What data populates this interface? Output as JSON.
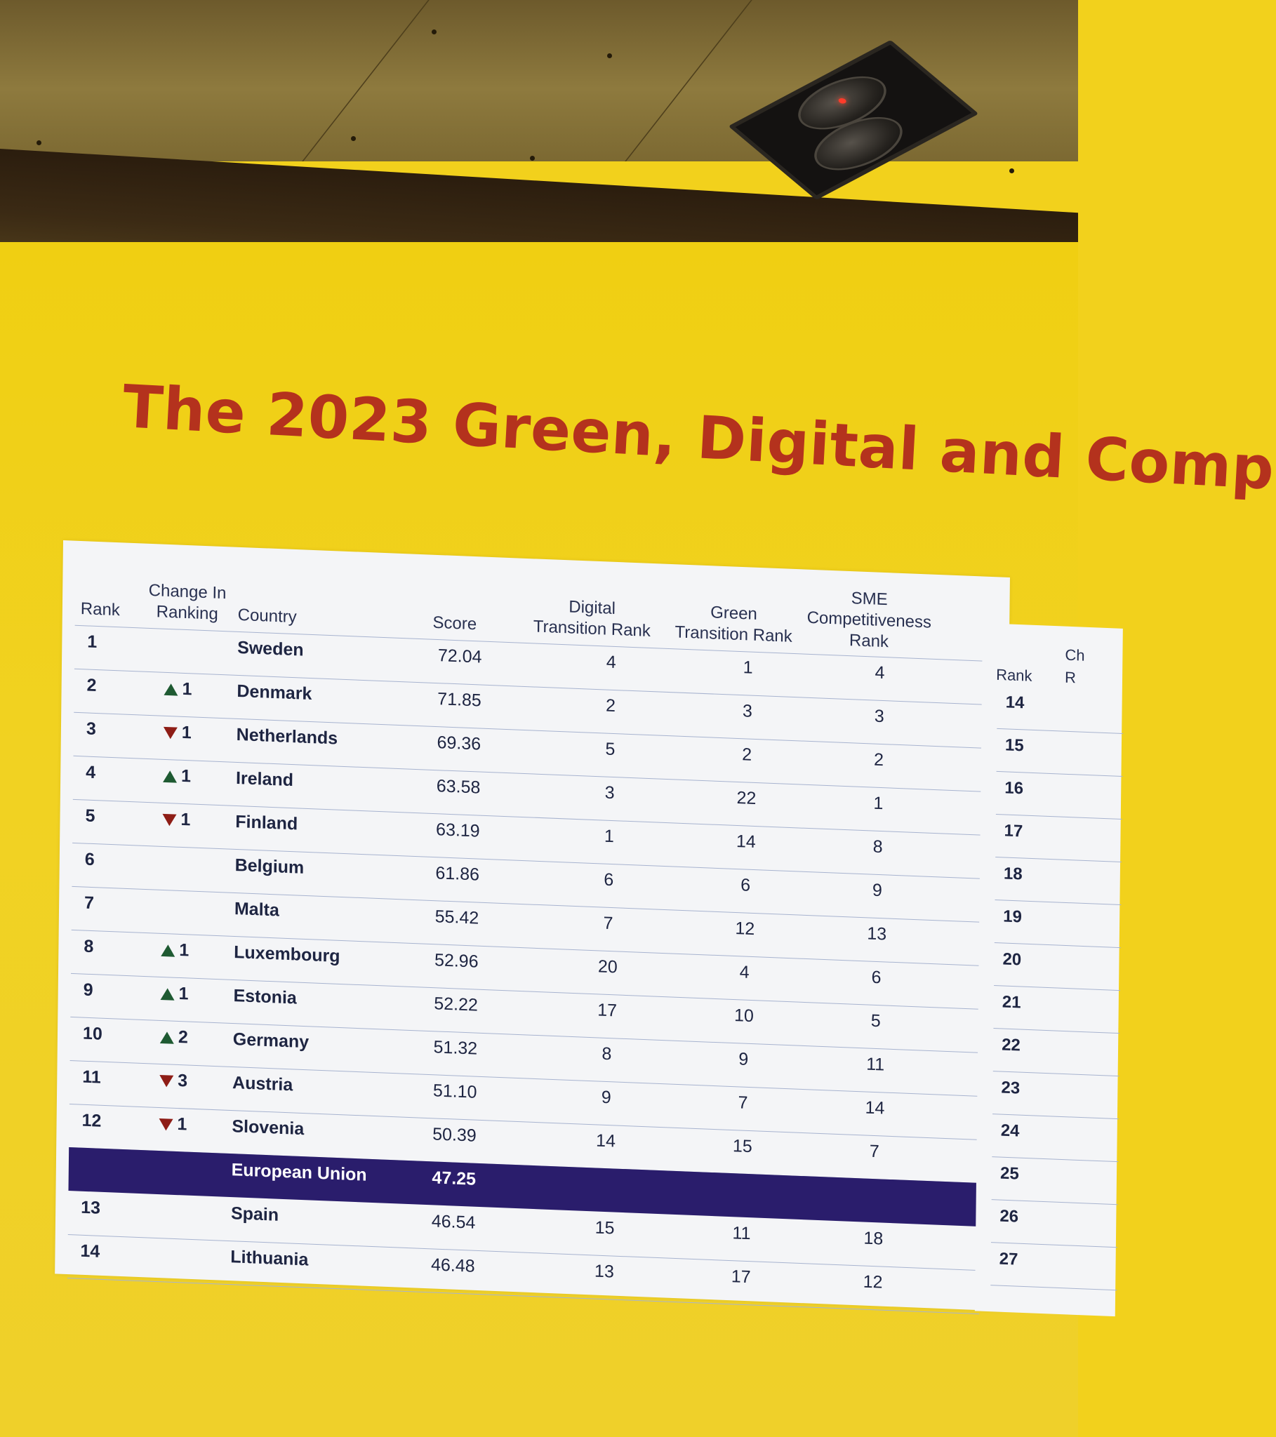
{
  "title": "The 2023 Green, Digital and Comp",
  "table": {
    "headers": {
      "rank": "Rank",
      "change_line1": "Change In",
      "change_line2": "Ranking",
      "country": "Country",
      "score": "Score",
      "digital_line1": "Digital",
      "digital_line2": "Transition Rank",
      "green_line1": "Green",
      "green_line2": "Transition Rank",
      "sme_line1": "SME",
      "sme_line2": "Competitiveness",
      "sme_line3": "Rank"
    },
    "rows": [
      {
        "rank": "1",
        "dir": "",
        "change": "",
        "country": "Sweden",
        "score": "72.04",
        "digital": "4",
        "green": "1",
        "sme": "4"
      },
      {
        "rank": "2",
        "dir": "up",
        "change": "1",
        "country": "Denmark",
        "score": "71.85",
        "digital": "2",
        "green": "3",
        "sme": "3"
      },
      {
        "rank": "3",
        "dir": "down",
        "change": "1",
        "country": "Netherlands",
        "score": "69.36",
        "digital": "5",
        "green": "2",
        "sme": "2"
      },
      {
        "rank": "4",
        "dir": "up",
        "change": "1",
        "country": "Ireland",
        "score": "63.58",
        "digital": "3",
        "green": "22",
        "sme": "1"
      },
      {
        "rank": "5",
        "dir": "down",
        "change": "1",
        "country": "Finland",
        "score": "63.19",
        "digital": "1",
        "green": "14",
        "sme": "8"
      },
      {
        "rank": "6",
        "dir": "",
        "change": "",
        "country": "Belgium",
        "score": "61.86",
        "digital": "6",
        "green": "6",
        "sme": "9"
      },
      {
        "rank": "7",
        "dir": "",
        "change": "",
        "country": "Malta",
        "score": "55.42",
        "digital": "7",
        "green": "12",
        "sme": "13"
      },
      {
        "rank": "8",
        "dir": "up",
        "change": "1",
        "country": "Luxembourg",
        "score": "52.96",
        "digital": "20",
        "green": "4",
        "sme": "6"
      },
      {
        "rank": "9",
        "dir": "up",
        "change": "1",
        "country": "Estonia",
        "score": "52.22",
        "digital": "17",
        "green": "10",
        "sme": "5"
      },
      {
        "rank": "10",
        "dir": "up",
        "change": "2",
        "country": "Germany",
        "score": "51.32",
        "digital": "8",
        "green": "9",
        "sme": "11"
      },
      {
        "rank": "11",
        "dir": "down",
        "change": "3",
        "country": "Austria",
        "score": "51.10",
        "digital": "9",
        "green": "7",
        "sme": "14"
      },
      {
        "rank": "12",
        "dir": "down",
        "change": "1",
        "country": "Slovenia",
        "score": "50.39",
        "digital": "14",
        "green": "15",
        "sme": "7"
      }
    ],
    "eu_row": {
      "country": "European Union",
      "score": "47.25"
    },
    "rows_after": [
      {
        "rank": "13",
        "country": "Spain",
        "score": "46.54",
        "digital": "15",
        "green": "11",
        "sme": "18"
      },
      {
        "rank": "14",
        "country": "Lithuania",
        "score": "46.48",
        "digital": "13",
        "green": "17",
        "sme": "12"
      }
    ]
  },
  "side_table": {
    "header_rank": "Rank",
    "header_change_partial": "Ch",
    "header_change_partial2": "R",
    "ranks": [
      "14",
      "15",
      "16",
      "17",
      "18",
      "19",
      "20",
      "21",
      "22",
      "23",
      "24",
      "25",
      "26",
      "27"
    ]
  },
  "colors": {
    "screen_yellow": "#f1d222",
    "title_red": "#b4321d",
    "eu_row_navy": "#2a1d6c",
    "up_green": "#1e5a32",
    "down_red": "#8e1d16"
  }
}
